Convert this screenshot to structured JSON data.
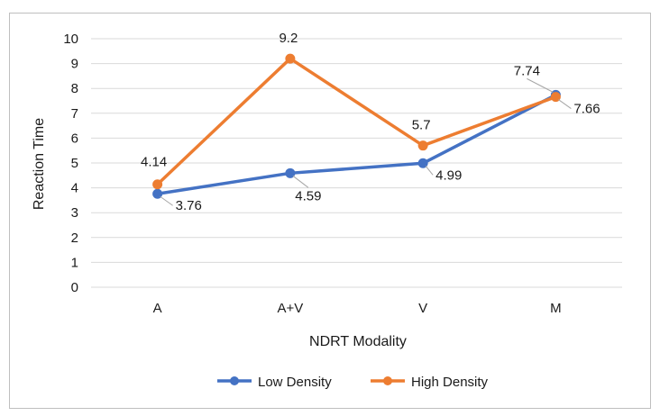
{
  "chart_data": {
    "type": "line",
    "categories": [
      "A",
      "A+V",
      "V",
      "M"
    ],
    "series": [
      {
        "name": "Low Density",
        "values": [
          3.76,
          4.59,
          4.99,
          7.74
        ],
        "color": "#4472c4"
      },
      {
        "name": "High Density",
        "values": [
          4.14,
          9.2,
          5.7,
          7.66
        ],
        "color": "#ed7d31"
      }
    ],
    "data_labels": {
      "low": [
        "3.76",
        "4.59",
        "4.99",
        "7.74"
      ],
      "high": [
        "4.14",
        "9.2",
        "5.7",
        "7.66"
      ]
    },
    "ylim": [
      0,
      10
    ],
    "yticks": [
      "0",
      "1",
      "2",
      "3",
      "4",
      "5",
      "6",
      "7",
      "8",
      "9",
      "10"
    ],
    "xlabel": "NDRT Modality",
    "ylabel": "Reaction Time",
    "grid": true,
    "legend_position": "bottom-center"
  }
}
